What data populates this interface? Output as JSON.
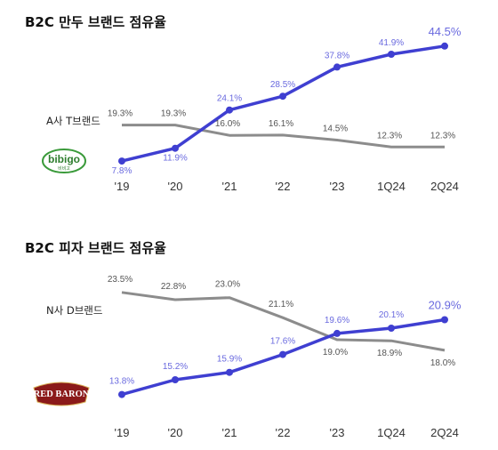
{
  "chart_data": [
    {
      "type": "line",
      "title": "B2C 만두 브랜드 점유율",
      "categories": [
        "'19",
        "'20",
        "'21",
        "'22",
        "'23",
        "1Q24",
        "2Q24"
      ],
      "series": [
        {
          "name": "비비고",
          "color": "#3f3fd1",
          "values": [
            7.8,
            11.9,
            24.1,
            28.5,
            37.8,
            41.9,
            44.5
          ],
          "labels": [
            "7.8%",
            "11.9%",
            "24.1%",
            "28.5%",
            "37.8%",
            "41.9%",
            "44.5%"
          ]
        },
        {
          "name": "A사 T브랜드",
          "color": "#8c8c8c",
          "values": [
            19.3,
            19.3,
            16.0,
            16.1,
            14.5,
            12.3,
            12.3
          ],
          "labels": [
            "19.3%",
            "19.3%",
            "16.0%",
            "16.1%",
            "14.5%",
            "12.3%",
            "12.3%"
          ]
        }
      ],
      "ylim": [
        5,
        47
      ],
      "legend_label": "A사 T브랜드",
      "logo_text": "bibigo",
      "logo_subtext": "비비고"
    },
    {
      "type": "line",
      "title": "B2C 피자 브랜드 점유율",
      "categories": [
        "'19",
        "'20",
        "'21",
        "'22",
        "'23",
        "1Q24",
        "2Q24"
      ],
      "series": [
        {
          "name": "Red Baron",
          "color": "#3f3fd1",
          "values": [
            13.8,
            15.2,
            15.9,
            17.6,
            19.6,
            20.1,
            20.9
          ],
          "labels": [
            "13.8%",
            "15.2%",
            "15.9%",
            "17.6%",
            "19.6%",
            "20.1%",
            "20.9%"
          ]
        },
        {
          "name": "N사 D브랜드",
          "color": "#8c8c8c",
          "values": [
            23.5,
            22.8,
            23.0,
            21.1,
            19.0,
            18.9,
            18.0
          ],
          "labels": [
            "23.5%",
            "22.8%",
            "23.0%",
            "21.1%",
            "19.0%",
            "18.9%",
            "18.0%"
          ]
        }
      ],
      "ylim": [
        12.5,
        25
      ],
      "legend_label": "N사 D브랜드",
      "logo_text": "RED BARON"
    }
  ]
}
